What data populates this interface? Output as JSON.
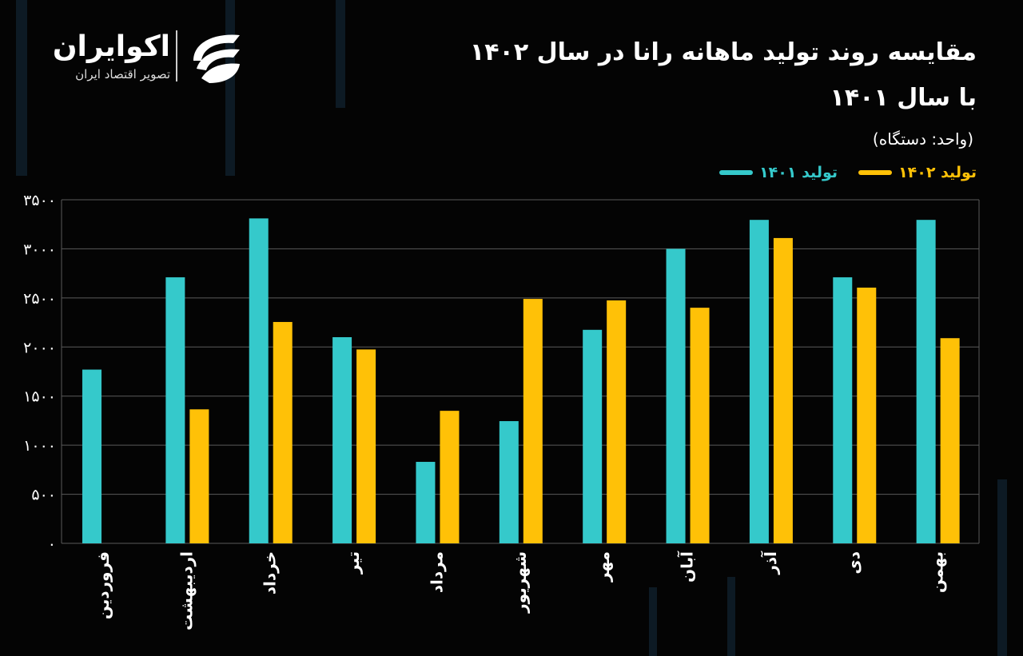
{
  "logo": {
    "name": "اکوایران",
    "tagline": "تصویر اقتصاد ایران"
  },
  "title_line1": "مقایسه روند تولید ماهانه رانا در سال ۱۴۰۲",
  "title_line2": "با سال ۱۴۰۱",
  "unit": "(واحد: دستگاه)",
  "colors": {
    "s1401": "#35c9cb",
    "s1402": "#ffc107",
    "background": "#040404",
    "grid": "#5a5a5a"
  },
  "chart_data": {
    "type": "bar",
    "title": "مقایسه روند تولید ماهانه رانا در سال ۱۴۰۲ با سال ۱۴۰۱",
    "ylabel": "(واحد: دستگاه)",
    "categories": [
      "فروردین",
      "اردیبهشت",
      "خرداد",
      "تیر",
      "مرداد",
      "شهریور",
      "مهر",
      "آبان",
      "آذر",
      "دی",
      "بهمن"
    ],
    "series": [
      {
        "name": "تولید ۱۴۰۱",
        "color": "#35c9cb",
        "values": [
          1770,
          2710,
          3310,
          2100,
          830,
          1245,
          2175,
          3000,
          3295,
          2710,
          3295
        ]
      },
      {
        "name": "تولید ۱۴۰۲",
        "color": "#ffc107",
        "values": [
          null,
          1365,
          2255,
          1975,
          1350,
          2490,
          2475,
          2400,
          3110,
          2605,
          2090
        ]
      }
    ],
    "ylim": [
      0,
      3500
    ],
    "yticks": [
      0,
      500,
      1000,
      1500,
      2000,
      2500,
      3000,
      3500
    ],
    "ytick_labels": [
      "۰",
      "۵۰۰",
      "۱۰۰۰",
      "۱۵۰۰",
      "۲۰۰۰",
      "۲۵۰۰",
      "۳۰۰۰",
      "۳۵۰۰"
    ],
    "grid": true,
    "legend": "top-right"
  }
}
